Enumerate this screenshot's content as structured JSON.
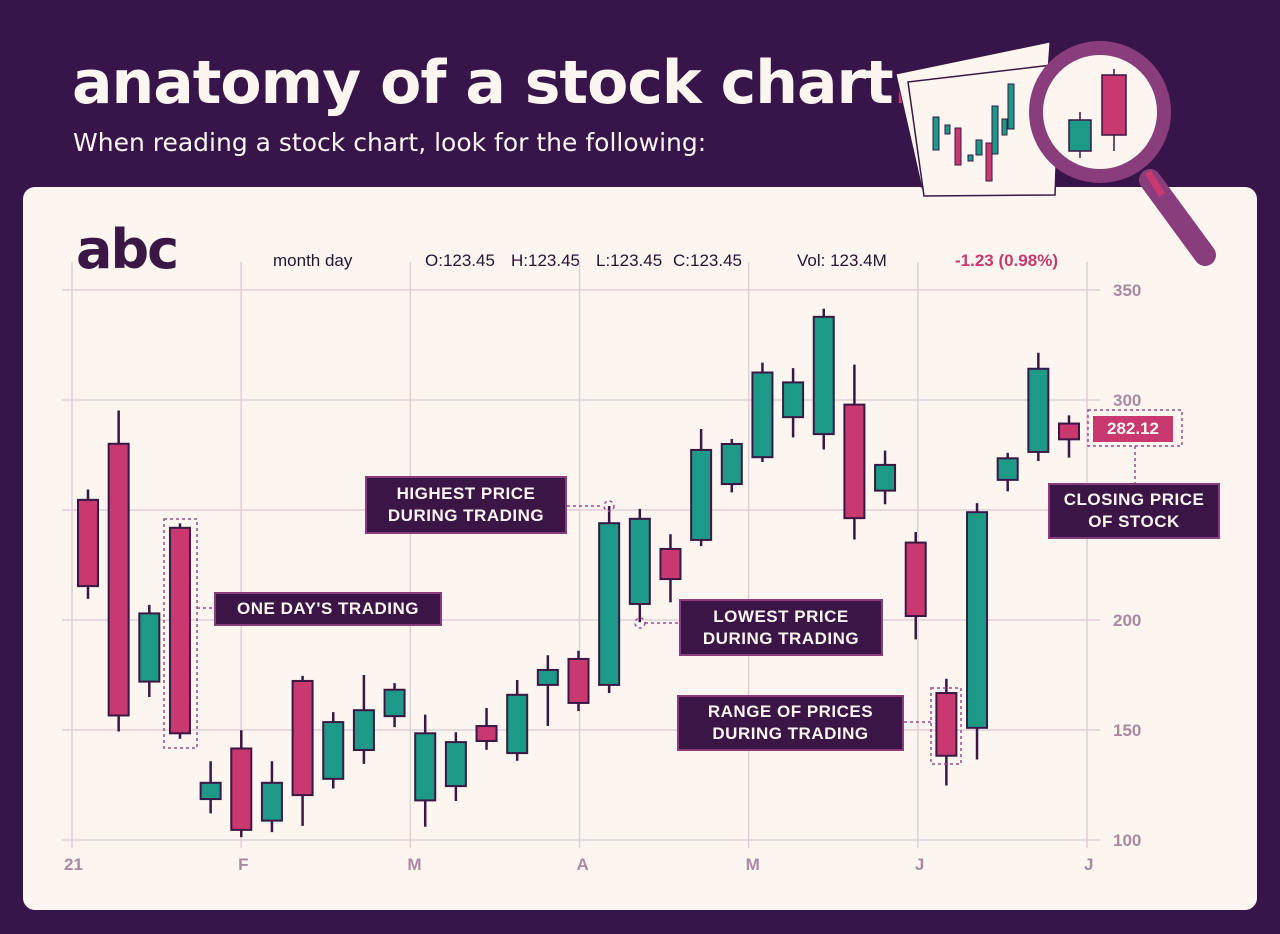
{
  "header": {
    "title": "anatomy of a stock chart",
    "title_dot": ".",
    "subtitle": "When reading a stock chart, look for the following:"
  },
  "ticker": {
    "logo": "abc",
    "date": "month day",
    "open": "O:123.45",
    "high": "H:123.45",
    "low": "L:123.45",
    "close": "C:123.45",
    "volume": "Vol: 123.4M",
    "change": "-1.23 (0.98%)"
  },
  "callouts": {
    "one_day": "ONE DAY'S TRADING",
    "highest_1": "HIGHEST PRICE",
    "highest_2": "DURING TRADING",
    "lowest_1": "LOWEST PRICE",
    "lowest_2": "DURING TRADING",
    "range_1": "RANGE OF PRICES",
    "range_2": "DURING TRADING",
    "closing_1": "CLOSING PRICE",
    "closing_2": "OF STOCK",
    "closing_value": "282.12"
  },
  "colors": {
    "background": "#37154a",
    "card": "#fdf6f0",
    "bullish": "#1d9a87",
    "bearish": "#c9386e",
    "outline": "#3a1745",
    "grid": "#e0cfd7",
    "callout": "#3b1545"
  },
  "icons": [
    "magnifying-glass-icon",
    "chart-paper-icon"
  ],
  "chart_data": {
    "type": "candlestick",
    "grid": true,
    "ylim": [
      100,
      350
    ],
    "y_ticks": [
      "100",
      "150",
      "200",
      "300",
      "350"
    ],
    "y_axis_side": "right",
    "x_ticks": [
      "21",
      "F",
      "M",
      "A",
      "M",
      "J",
      "J"
    ],
    "candles": [
      {
        "open": 254.6,
        "high": 259.3,
        "low": 209.6,
        "close": 215.4
      },
      {
        "open": 280.1,
        "high": 295.2,
        "low": 149.3,
        "close": 156.6
      },
      {
        "open": 172.0,
        "high": 206.9,
        "low": 165.0,
        "close": 203.0
      },
      {
        "open": 241.9,
        "high": 243.9,
        "low": 146.0,
        "close": 148.5
      },
      {
        "open": 118.6,
        "high": 135.8,
        "low": 112.1,
        "close": 126.0
      },
      {
        "open": 141.6,
        "high": 149.9,
        "low": 101.3,
        "close": 104.6
      },
      {
        "open": 108.8,
        "high": 135.8,
        "low": 103.6,
        "close": 126.0
      },
      {
        "open": 172.3,
        "high": 174.6,
        "low": 106.4,
        "close": 120.4
      },
      {
        "open": 127.8,
        "high": 158.1,
        "low": 123.4,
        "close": 153.6
      },
      {
        "open": 140.9,
        "high": 175.0,
        "low": 134.6,
        "close": 159.0
      },
      {
        "open": 156.3,
        "high": 171.3,
        "low": 151.3,
        "close": 168.3
      },
      {
        "open": 118.0,
        "high": 157.0,
        "low": 106.0,
        "close": 148.5
      },
      {
        "open": 124.5,
        "high": 149.0,
        "low": 117.7,
        "close": 144.5
      },
      {
        "open": 151.8,
        "high": 160.0,
        "low": 141.0,
        "close": 145.0
      },
      {
        "open": 139.5,
        "high": 172.7,
        "low": 136.0,
        "close": 166.0
      },
      {
        "open": 170.5,
        "high": 184.0,
        "low": 151.8,
        "close": 177.3
      },
      {
        "open": 182.3,
        "high": 186.0,
        "low": 158.6,
        "close": 162.3
      },
      {
        "open": 170.5,
        "high": 251.8,
        "low": 166.8,
        "close": 244.0
      },
      {
        "open": 207.3,
        "high": 250.5,
        "low": 199.0,
        "close": 246.0
      },
      {
        "open": 232.3,
        "high": 239.0,
        "low": 208.0,
        "close": 218.6
      },
      {
        "open": 236.4,
        "high": 286.8,
        "low": 233.6,
        "close": 277.3
      },
      {
        "open": 261.8,
        "high": 282.3,
        "low": 258.0,
        "close": 280.0
      },
      {
        "open": 274.0,
        "high": 317.0,
        "low": 271.8,
        "close": 312.5
      },
      {
        "open": 292.2,
        "high": 314.5,
        "low": 283.0,
        "close": 308.0
      },
      {
        "open": 284.5,
        "high": 341.5,
        "low": 277.5,
        "close": 337.8
      },
      {
        "open": 297.9,
        "high": 316.1,
        "low": 236.6,
        "close": 246.3
      },
      {
        "open": 258.8,
        "high": 277.0,
        "low": 252.6,
        "close": 270.5
      },
      {
        "open": 235.2,
        "high": 240.0,
        "low": 191.2,
        "close": 201.8
      },
      {
        "open": 166.8,
        "high": 173.3,
        "low": 124.8,
        "close": 138.3
      },
      {
        "open": 151.0,
        "high": 253.1,
        "low": 136.6,
        "close": 249.0
      },
      {
        "open": 263.7,
        "high": 276.0,
        "low": 258.5,
        "close": 273.5
      },
      {
        "open": 276.4,
        "high": 321.5,
        "low": 272.3,
        "close": 314.2
      },
      {
        "open": 289.3,
        "high": 293.0,
        "low": 273.8,
        "close": 282.12
      }
    ]
  }
}
